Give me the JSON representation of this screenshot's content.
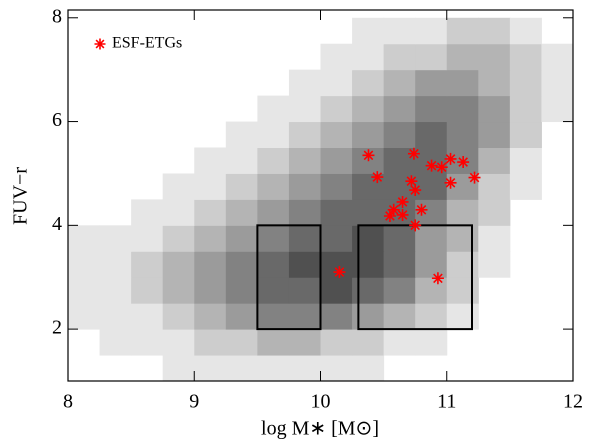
{
  "chart_data": {
    "type": "scatter",
    "xlabel": "log M∗ [M⊙]",
    "ylabel": "FUV−r",
    "xlim": [
      8,
      12
    ],
    "xticks": [
      8,
      9,
      10,
      11,
      12
    ],
    "ylim": [
      1,
      8.15
    ],
    "yticks": [
      2,
      4,
      6,
      8
    ],
    "legend": "top-left",
    "series": [
      {
        "name": "ESF-ETGs",
        "color": "#ff0000",
        "x": [
          10.38,
          10.45,
          10.74,
          10.72,
          10.75,
          10.65,
          10.58,
          10.55,
          10.65,
          10.8,
          10.75,
          10.88,
          10.96,
          11.03,
          11.03,
          11.13,
          11.22,
          10.15,
          10.93
        ],
        "values": [
          5.35,
          4.93,
          5.38,
          4.85,
          4.68,
          4.45,
          4.3,
          4.18,
          4.2,
          4.3,
          4.0,
          5.15,
          5.12,
          5.28,
          4.82,
          5.22,
          4.92,
          3.1,
          2.98
        ]
      }
    ],
    "boxes": [
      {
        "xlim": [
          9.5,
          10
        ],
        "ylim": [
          2,
          4
        ]
      },
      {
        "xlim": [
          10.3,
          11.2
        ],
        "ylim": [
          2,
          4
        ]
      }
    ],
    "density": {
      "xbins": [
        8,
        8.25,
        8.5,
        8.75,
        9,
        9.25,
        9.5,
        9.75,
        10,
        10.25,
        10.5,
        10.75,
        11,
        11.25,
        11.5,
        11.75,
        12
      ],
      "ybins": [
        1,
        1.5,
        2,
        2.5,
        3,
        3.5,
        4,
        4.5,
        5,
        5.5,
        6,
        6.5,
        7,
        7.5,
        8
      ],
      "counts": [
        [
          0,
          0,
          0,
          1,
          1,
          1,
          1,
          1,
          1,
          1,
          0,
          0,
          0,
          0,
          0,
          0
        ],
        [
          0,
          1,
          1,
          1,
          2,
          2,
          3,
          3,
          2,
          2,
          1,
          1,
          0,
          0,
          0,
          0
        ],
        [
          1,
          1,
          1,
          2,
          3,
          4,
          5,
          5,
          5,
          4,
          3,
          2,
          1,
          0,
          0,
          0
        ],
        [
          1,
          1,
          2,
          3,
          4,
          5,
          6,
          6,
          7,
          6,
          5,
          3,
          2,
          0,
          0,
          0
        ],
        [
          1,
          1,
          2,
          3,
          4,
          5,
          6,
          7,
          7,
          7,
          6,
          4,
          2,
          1,
          0,
          0
        ],
        [
          1,
          1,
          1,
          2,
          3,
          4,
          5,
          6,
          6,
          7,
          6,
          4,
          3,
          1,
          0,
          0
        ],
        [
          0,
          0,
          1,
          1,
          2,
          3,
          4,
          5,
          6,
          6,
          6,
          5,
          3,
          2,
          0,
          0
        ],
        [
          0,
          0,
          0,
          1,
          1,
          2,
          3,
          4,
          5,
          6,
          6,
          6,
          4,
          2,
          1,
          0
        ],
        [
          0,
          0,
          0,
          0,
          1,
          1,
          2,
          3,
          4,
          5,
          6,
          6,
          5,
          3,
          1,
          0
        ],
        [
          0,
          0,
          0,
          0,
          0,
          1,
          1,
          2,
          3,
          4,
          5,
          6,
          5,
          4,
          2,
          0
        ],
        [
          0,
          0,
          0,
          0,
          0,
          0,
          1,
          1,
          2,
          3,
          4,
          5,
          5,
          4,
          2,
          1
        ],
        [
          0,
          0,
          0,
          0,
          0,
          0,
          0,
          1,
          1,
          2,
          3,
          4,
          4,
          3,
          2,
          1
        ],
        [
          0,
          0,
          0,
          0,
          0,
          0,
          0,
          0,
          1,
          1,
          2,
          2,
          3,
          3,
          2,
          1
        ],
        [
          0,
          0,
          0,
          0,
          0,
          0,
          0,
          0,
          0,
          1,
          1,
          1,
          2,
          2,
          1,
          0
        ]
      ]
    }
  }
}
